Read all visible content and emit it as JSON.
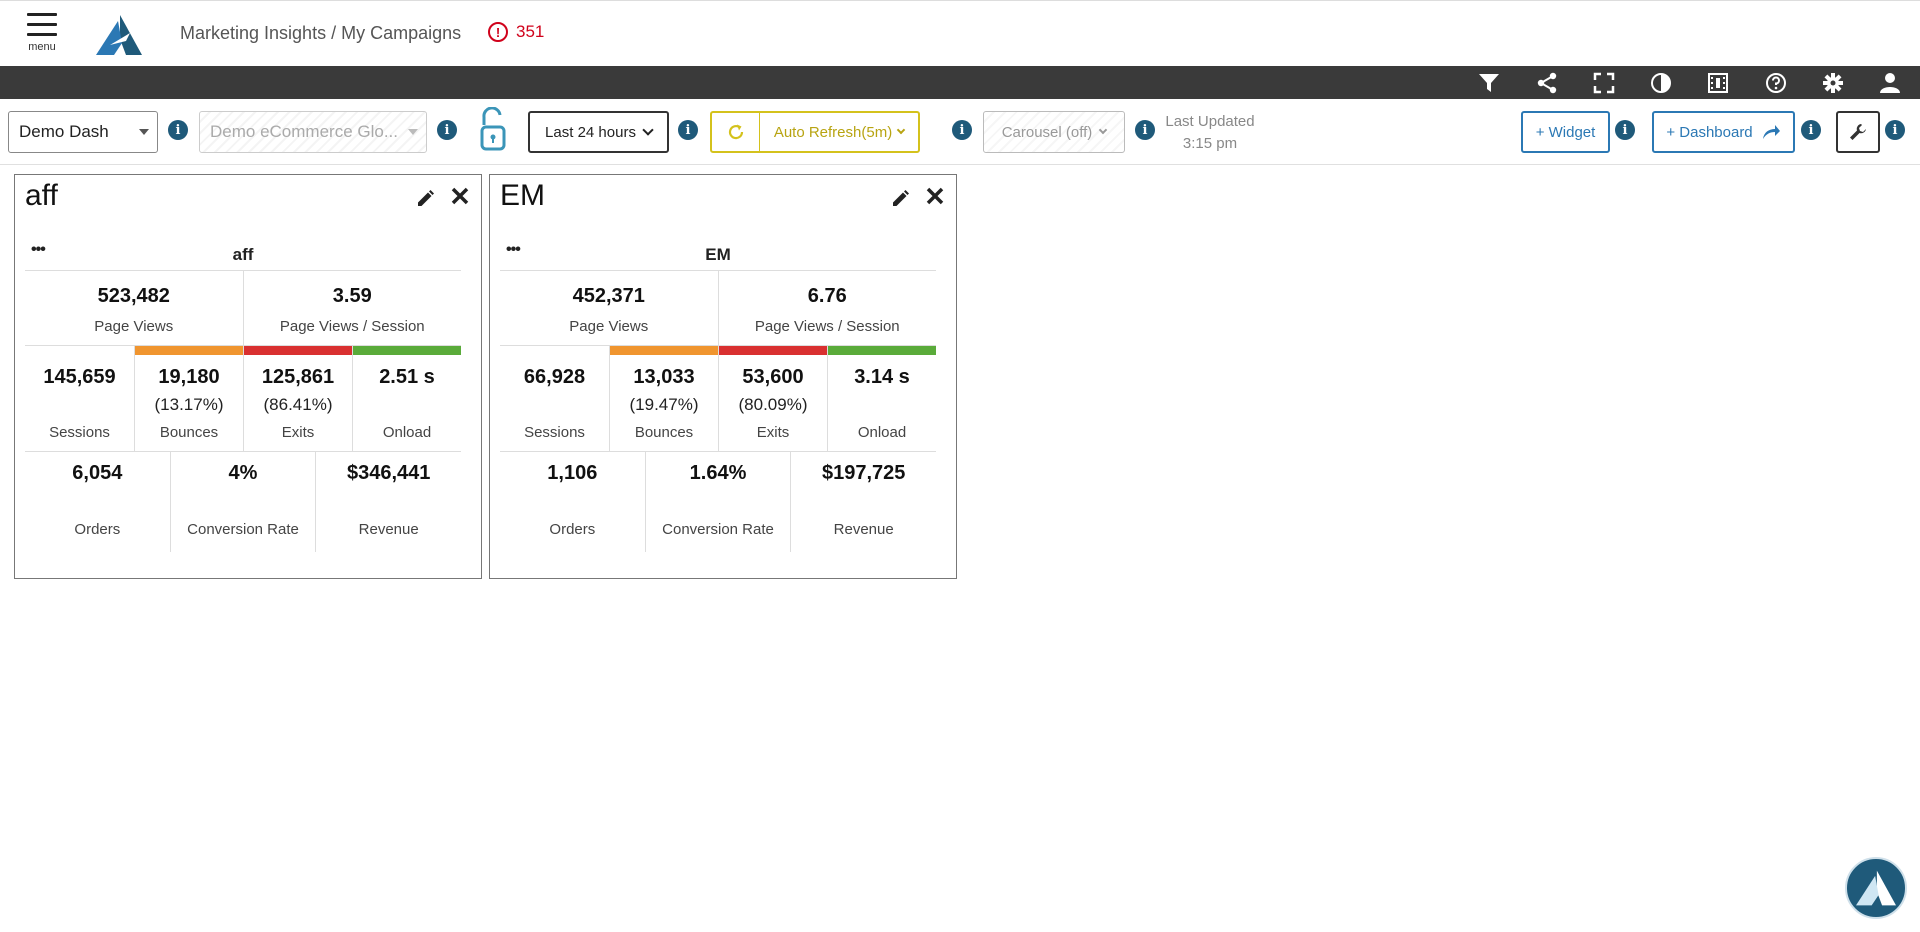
{
  "header": {
    "menu_label": "menu",
    "breadcrumb": "Marketing Insights / My Campaigns",
    "alert_count": "351",
    "alert_icon": "!"
  },
  "darkbar_icons": [
    "filter-icon",
    "share-icon",
    "fullscreen-icon",
    "contrast-icon",
    "film-icon",
    "help-icon",
    "settings-icon",
    "user-icon"
  ],
  "controls": {
    "dashboard_select": "Demo Dash",
    "app_select": "Demo eCommerce Glo...",
    "time_range": "Last 24 hours",
    "auto_refresh": "Auto Refresh(5m)",
    "carousel": "Carousel (off)",
    "last_updated_label": "Last Updated",
    "last_updated_time": "3:15 pm",
    "add_widget": "+ Widget",
    "add_dashboard": "+ Dashboard",
    "info_glyph": "i"
  },
  "colors": {
    "dark_bar": "#3a3a3a",
    "accent_blue": "#2b78b4",
    "info_blue": "#1f5a7a",
    "refresh_yellow": "#d4c21c",
    "alert_red": "#d0021b",
    "bounce_orange": "#f0952f",
    "exit_red": "#d93030",
    "onload_green": "#5aab3a"
  },
  "widgets": [
    {
      "title": "aff",
      "name": "aff",
      "dots": "•••",
      "page_views": "523,482",
      "page_views_label": "Page Views",
      "pv_per_session": "3.59",
      "pv_per_session_label": "Page Views / Session",
      "sessions": "145,659",
      "sessions_label": "Sessions",
      "bounces": "19,180",
      "bounces_pct": "(13.17%)",
      "bounces_label": "Bounces",
      "exits": "125,861",
      "exits_pct": "(86.41%)",
      "exits_label": "Exits",
      "onload": "2.51 s",
      "onload_label": "Onload",
      "orders": "6,054",
      "orders_label": "Orders",
      "conversion": "4%",
      "conversion_label": "Conversion Rate",
      "revenue": "$346,441",
      "revenue_label": "Revenue"
    },
    {
      "title": "EM",
      "name": "EM",
      "dots": "•••",
      "page_views": "452,371",
      "page_views_label": "Page Views",
      "pv_per_session": "6.76",
      "pv_per_session_label": "Page Views / Session",
      "sessions": "66,928",
      "sessions_label": "Sessions",
      "bounces": "13,033",
      "bounces_pct": "(19.47%)",
      "bounces_label": "Bounces",
      "exits": "53,600",
      "exits_pct": "(80.09%)",
      "exits_label": "Exits",
      "onload": "3.14 s",
      "onload_label": "Onload",
      "orders": "1,106",
      "orders_label": "Orders",
      "conversion": "1.64%",
      "conversion_label": "Conversion Rate",
      "revenue": "$197,725",
      "revenue_label": "Revenue"
    }
  ]
}
